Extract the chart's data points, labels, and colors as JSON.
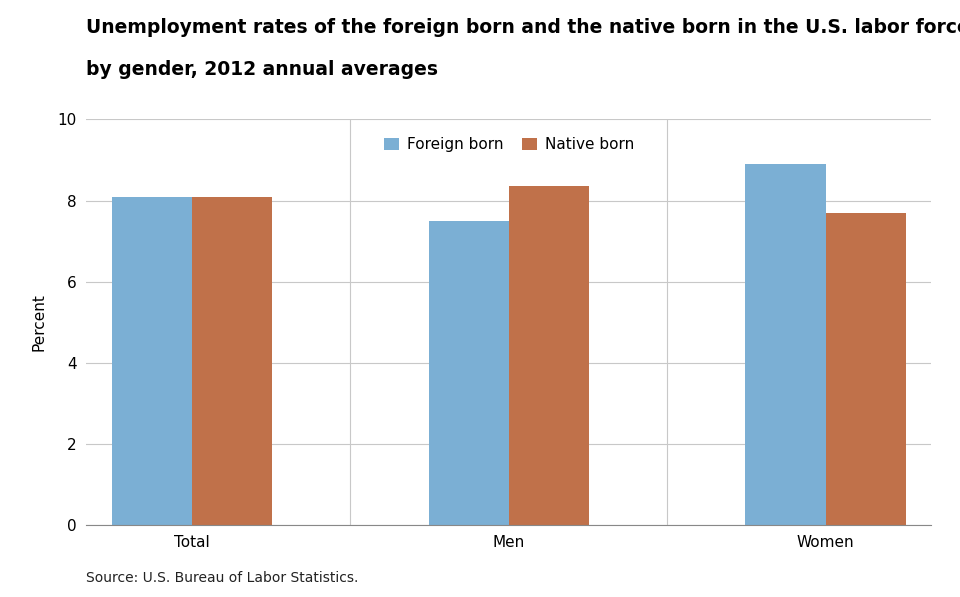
{
  "title_line1": "Unemployment rates of the foreign born and the native born in the U.S. labor force",
  "title_line2": "by gender, 2012 annual averages",
  "categories": [
    "Total",
    "Men",
    "Women"
  ],
  "foreign_born": [
    8.1,
    7.5,
    8.9
  ],
  "native_born": [
    8.1,
    8.35,
    7.7
  ],
  "foreign_born_color": "#7BAFD4",
  "native_born_color": "#C0714A",
  "ylabel": "Percent",
  "ylim": [
    0,
    10
  ],
  "yticks": [
    0,
    2,
    4,
    6,
    8,
    10
  ],
  "legend_labels": [
    "Foreign born",
    "Native born"
  ],
  "source_text": "Source: U.S. Bureau of Labor Statistics.",
  "bar_width": 0.38,
  "background_color": "#ffffff",
  "title_fontsize": 13.5,
  "axis_fontsize": 11,
  "tick_fontsize": 11,
  "legend_fontsize": 11,
  "source_fontsize": 10,
  "group_positions": [
    0.5,
    2.0,
    3.5
  ],
  "xlim": [
    0.0,
    4.0
  ]
}
